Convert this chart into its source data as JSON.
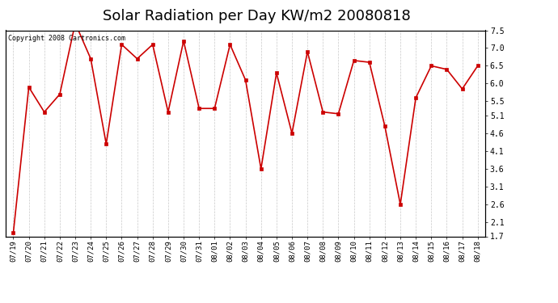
{
  "title": "Solar Radiation per Day KW/m2 20080818",
  "copyright_text": "Copyright 2008 Cartronics.com",
  "dates": [
    "07/19",
    "07/20",
    "07/21",
    "07/22",
    "07/23",
    "07/24",
    "07/25",
    "07/26",
    "07/27",
    "07/28",
    "07/29",
    "07/30",
    "07/31",
    "08/01",
    "08/02",
    "08/03",
    "08/04",
    "08/05",
    "08/06",
    "08/07",
    "08/08",
    "08/09",
    "08/10",
    "08/11",
    "08/12",
    "08/13",
    "08/14",
    "08/15",
    "08/16",
    "08/17",
    "08/18"
  ],
  "values": [
    1.8,
    5.9,
    5.2,
    5.7,
    7.7,
    6.7,
    4.3,
    7.1,
    6.7,
    7.1,
    5.2,
    7.2,
    5.3,
    5.3,
    7.1,
    6.1,
    3.6,
    6.3,
    4.6,
    6.9,
    5.2,
    5.15,
    6.65,
    6.6,
    4.8,
    2.6,
    5.6,
    6.5,
    6.4,
    5.85,
    6.5
  ],
  "line_color": "#cc0000",
  "marker_color": "#cc0000",
  "bg_color": "#ffffff",
  "grid_color": "#bbbbbb",
  "title_fontsize": 13,
  "ylim": [
    1.7,
    7.5
  ],
  "yticks": [
    1.7,
    2.1,
    2.6,
    3.1,
    3.6,
    4.1,
    4.6,
    5.1,
    5.5,
    6.0,
    6.5,
    7.0,
    7.5
  ]
}
